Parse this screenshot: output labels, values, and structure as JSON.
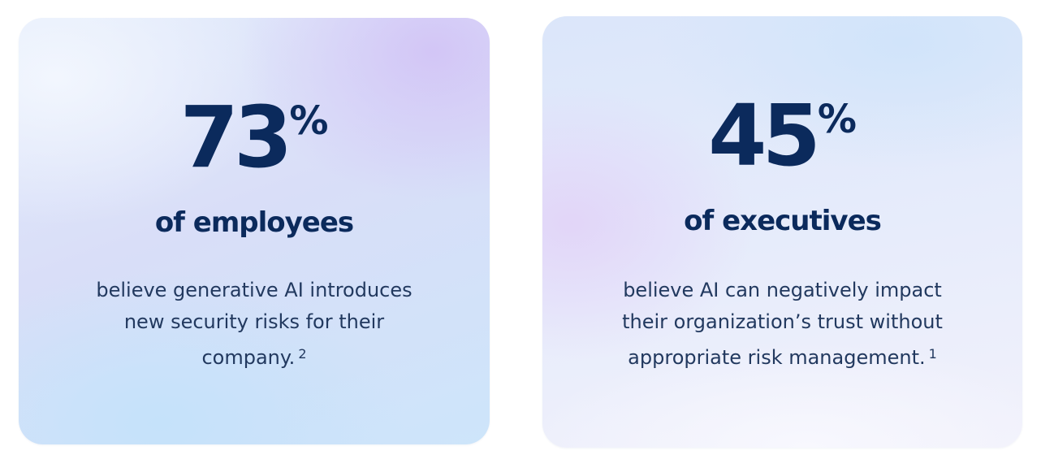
{
  "cards": [
    {
      "number": "73",
      "percent": "%",
      "subject": "of employees",
      "description": "believe generative AI introduces new security risks for their company.",
      "footnote": "2"
    },
    {
      "number": "45",
      "percent": "%",
      "subject": "of executives",
      "description": "believe AI can negatively impact their organization’s trust without appropriate risk management.",
      "footnote": "1"
    }
  ],
  "colors": {
    "text_primary": "#0b2a5c",
    "text_body": "#22395f"
  }
}
